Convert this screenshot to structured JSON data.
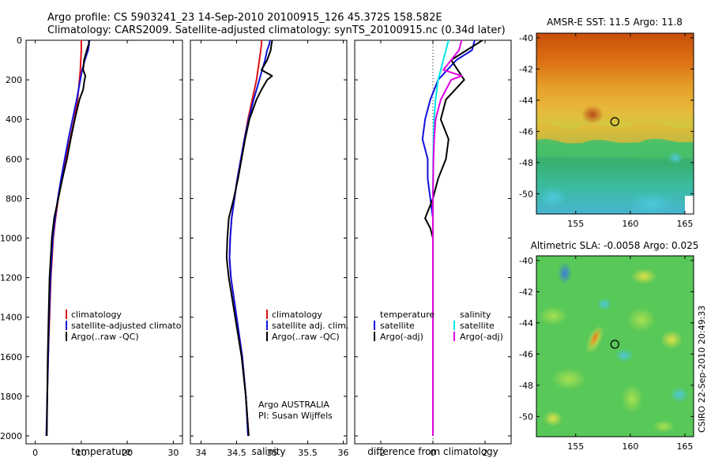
{
  "header": {
    "title_line1": "Argo profile: CS 5903241_23 14-Sep-2010 20100915_126 45.372S 158.582E",
    "title_line2": "Climatology: CARS2009. Satellite-adjusted climatology: synTS_20100915.nc (0.34d later)"
  },
  "colors": {
    "climatology": "#e01010",
    "satellite": "#1010e0",
    "argo": "#000000",
    "satellite_salinity": "#00e8e8",
    "argo_salinity_adj": "#e000e0"
  },
  "credits": {
    "line1": "Argo AUSTRALIA",
    "line2": "PI: Susan Wijffels",
    "stamp": "CSIRO 22-Sep-2010 20:49:33"
  },
  "chart_data": [
    {
      "type": "line",
      "name": "temperature-profile",
      "xlabel": "temperature",
      "ylabel": "",
      "xlim": [
        -2,
        32
      ],
      "ylim": [
        2040,
        0
      ],
      "x_ticks": [
        0,
        10,
        20,
        30
      ],
      "x_tick_labels": [
        "0",
        "10",
        "20",
        "30"
      ],
      "y_ticks": [
        0,
        200,
        400,
        600,
        800,
        1000,
        1200,
        1400,
        1600,
        1800,
        2000
      ],
      "y_tick_labels": [
        "0",
        "200",
        "400",
        "600",
        "800",
        "1000",
        "1200",
        "1400",
        "1600",
        "1800",
        "2000"
      ],
      "legend": [
        "climatology",
        "satellite-adjusted climatology",
        "Argo(..raw -QC)"
      ],
      "series": [
        {
          "name": "climatology",
          "depth": [
            0,
            20,
            50,
            100,
            150,
            200,
            300,
            400,
            500,
            600,
            700,
            800,
            900,
            1000,
            1200,
            1400,
            1600,
            1800,
            2000
          ],
          "values": [
            10.0,
            10.0,
            10.0,
            9.9,
            9.8,
            9.6,
            9.2,
            8.5,
            7.6,
            6.6,
            5.8,
            5.0,
            4.4,
            3.9,
            3.4,
            3.1,
            2.8,
            2.6,
            2.5
          ]
        },
        {
          "name": "satellite-adjusted climatology",
          "depth": [
            0,
            20,
            50,
            100,
            150,
            200,
            300,
            400,
            500,
            600,
            700,
            800,
            900,
            1000,
            1200,
            1400,
            1600,
            1800,
            2000
          ],
          "values": [
            11.6,
            11.7,
            11.5,
            10.8,
            10.2,
            9.8,
            9.0,
            8.1,
            7.2,
            6.4,
            5.6,
            4.9,
            4.3,
            3.8,
            3.3,
            3.0,
            2.8,
            2.6,
            2.4
          ]
        },
        {
          "name": "Argo(..raw -QC)",
          "depth": [
            0,
            20,
            50,
            100,
            150,
            180,
            200,
            250,
            300,
            400,
            500,
            600,
            700,
            800,
            900,
            1000,
            1200,
            1400,
            1600,
            1800,
            2000
          ],
          "values": [
            11.8,
            11.6,
            11.2,
            10.6,
            10.4,
            10.9,
            10.7,
            10.4,
            9.6,
            8.6,
            7.7,
            6.9,
            5.9,
            5.0,
            4.1,
            3.6,
            3.1,
            2.9,
            2.7,
            2.6,
            2.5
          ]
        }
      ]
    },
    {
      "type": "line",
      "name": "salinity-profile",
      "xlabel": "salinity",
      "ylabel": "",
      "xlim": [
        33.85,
        36.05
      ],
      "ylim": [
        2040,
        0
      ],
      "x_ticks": [
        34,
        34.5,
        35,
        35.5,
        36
      ],
      "x_tick_labels": [
        "34",
        "34.5",
        "35",
        "35.5",
        "36"
      ],
      "legend": [
        "climatology",
        "satellite adj. clim.",
        "Argo(..raw -QC)"
      ],
      "series": [
        {
          "name": "climatology",
          "depth": [
            0,
            20,
            50,
            100,
            200,
            300,
            400,
            500,
            600,
            700,
            800,
            900,
            1000,
            1100,
            1200,
            1400,
            1600,
            1800,
            2000
          ],
          "values": [
            34.85,
            34.85,
            34.84,
            34.82,
            34.78,
            34.72,
            34.66,
            34.61,
            34.56,
            34.51,
            34.47,
            34.43,
            34.41,
            34.4,
            34.42,
            34.5,
            34.58,
            34.63,
            34.67
          ]
        },
        {
          "name": "satellite adj. clim.",
          "depth": [
            0,
            20,
            50,
            100,
            200,
            300,
            400,
            500,
            600,
            700,
            800,
            900,
            1000,
            1100,
            1200,
            1400,
            1600,
            1800,
            2000
          ],
          "values": [
            34.97,
            34.96,
            34.93,
            34.9,
            34.82,
            34.74,
            34.67,
            34.61,
            34.56,
            34.51,
            34.47,
            34.43,
            34.41,
            34.4,
            34.42,
            34.5,
            34.58,
            34.63,
            34.66
          ]
        },
        {
          "name": "Argo(..raw -QC)",
          "depth": [
            0,
            20,
            50,
            100,
            150,
            180,
            200,
            250,
            300,
            400,
            500,
            600,
            700,
            800,
            900,
            1000,
            1100,
            1200,
            1400,
            1600,
            1800,
            2000
          ],
          "values": [
            35.0,
            34.99,
            34.98,
            34.93,
            34.85,
            35.0,
            34.93,
            34.85,
            34.78,
            34.68,
            34.62,
            34.57,
            34.52,
            34.46,
            34.39,
            34.37,
            34.36,
            34.39,
            34.48,
            34.57,
            34.63,
            34.67
          ]
        }
      ]
    },
    {
      "type": "line",
      "name": "difference-profile",
      "xlabel": "difference from climatology",
      "ylabel": "",
      "xlim": [
        -3,
        3
      ],
      "ylim": [
        2040,
        0
      ],
      "x_ticks": [
        -2,
        0,
        2
      ],
      "x_tick_labels": [
        "-2",
        "0",
        "2"
      ],
      "legend_temperature_heading": "temperature",
      "legend_salinity_heading": "salinity",
      "legend_temperature": [
        "satellite",
        "Argo(-adj)"
      ],
      "legend_salinity": [
        "satellite",
        "Argo(-adj)"
      ],
      "series": [
        {
          "name": "temperature satellite",
          "depth": [
            0,
            50,
            100,
            200,
            300,
            400,
            500,
            600,
            700,
            800,
            900,
            1000,
            1200,
            1400,
            1600,
            1800,
            2000
          ],
          "values": [
            1.6,
            1.5,
            0.9,
            0.2,
            -0.1,
            -0.3,
            -0.4,
            -0.2,
            -0.2,
            -0.1,
            0.0,
            0.0,
            0.0,
            0.0,
            0.0,
            0.0,
            0.0
          ]
        },
        {
          "name": "temperature Argo(-adj)",
          "depth": [
            0,
            50,
            100,
            200,
            300,
            400,
            500,
            600,
            700,
            800,
            900,
            950,
            1000,
            1200,
            1400,
            1600,
            1800,
            2000
          ],
          "values": [
            1.9,
            1.3,
            0.7,
            1.2,
            0.5,
            0.3,
            0.6,
            0.5,
            0.2,
            0.0,
            -0.3,
            -0.1,
            0.0,
            0.0,
            0.0,
            0.0,
            0.0,
            0.0
          ]
        },
        {
          "name": "salinity satellite",
          "depth": [
            0,
            50,
            100,
            200,
            300,
            400,
            500,
            600,
            800,
            1000,
            1200,
            1400,
            1600,
            1800,
            2000
          ],
          "values": [
            0.6,
            0.5,
            0.4,
            0.2,
            0.1,
            0.05,
            0.02,
            0.01,
            0.0,
            0.0,
            0.0,
            0.0,
            0.0,
            0.0,
            0.0
          ]
        },
        {
          "name": "salinity Argo(-adj)",
          "depth": [
            0,
            50,
            100,
            150,
            180,
            200,
            250,
            300,
            400,
            500,
            600,
            800,
            1000,
            1200,
            1400,
            1600,
            1800,
            2000
          ],
          "values": [
            1.1,
            1.0,
            0.7,
            0.4,
            1.1,
            0.7,
            0.5,
            0.3,
            0.1,
            0.05,
            0.02,
            0.0,
            0.0,
            0.0,
            0.0,
            0.0,
            0.0,
            0.0
          ]
        }
      ]
    },
    {
      "type": "heatmap",
      "name": "amsr-e-sst-map",
      "title": "AMSR-E SST: 11.5 Argo: 11.8",
      "x_ticks": [
        155,
        160,
        165
      ],
      "y_ticks": [
        -40,
        -42,
        -44,
        -46,
        -48,
        -50
      ],
      "xlim": [
        151.4,
        165.8
      ],
      "ylim": [
        -51.3,
        -39.7
      ],
      "marker": {
        "lon": 158.582,
        "lat": -45.372
      }
    },
    {
      "type": "heatmap",
      "name": "altimetric-sla-map",
      "title": "Altimetric SLA: -0.0058 Argo: 0.025",
      "x_ticks": [
        155,
        160,
        165
      ],
      "y_ticks": [
        -40,
        -42,
        -44,
        -46,
        -48,
        -50
      ],
      "xlim": [
        151.4,
        165.8
      ],
      "ylim": [
        -51.3,
        -39.7
      ],
      "marker": {
        "lon": 158.582,
        "lat": -45.372
      }
    }
  ]
}
